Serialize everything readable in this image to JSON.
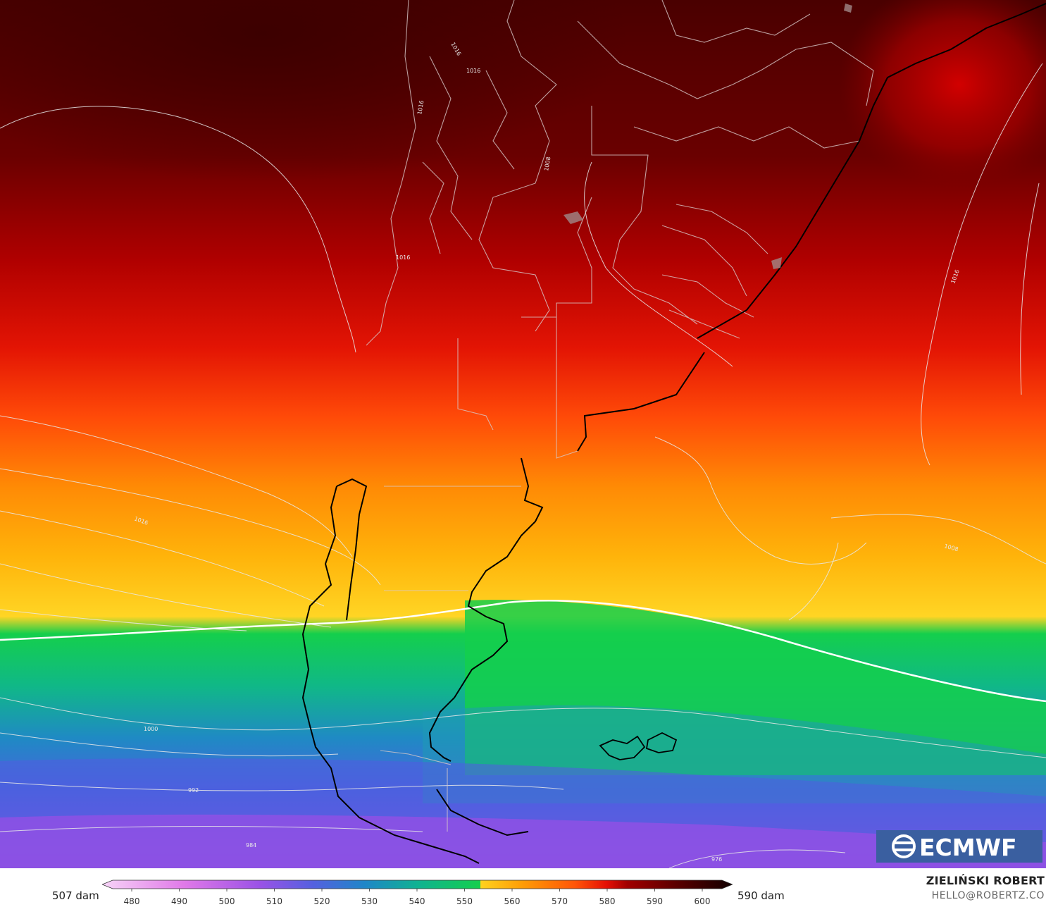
{
  "map": {
    "field": "500 hPa geopotential height (dam) with mean sea level pressure isobars",
    "region": "southern South America",
    "contour_labels": {
      "l1016_a": "1016",
      "l1016_b": "1016",
      "l1016_c": "1016",
      "l1016_d": "1016",
      "l1016_e": "1016",
      "l1016_f": "1016",
      "l1008_a": "1008",
      "l1008_b": "1008",
      "l1000": "1000",
      "l992": "992",
      "l984": "984",
      "l976": "976"
    },
    "logo": {
      "text": "ECMWF",
      "background": "#3a5fa0"
    }
  },
  "legend": {
    "min_label": "507 dam",
    "max_label": "590 dam",
    "ticks": [
      "480",
      "490",
      "500",
      "510",
      "520",
      "530",
      "540",
      "550",
      "560",
      "570",
      "580",
      "590",
      "600"
    ],
    "colors": {
      "480": "#f7d4f7",
      "495": "#e079e8",
      "510": "#9a52e6",
      "520": "#5560e0",
      "530": "#1f86c8",
      "540": "#10b292",
      "550": "#14cf4c",
      "552": "#ffd21f",
      "560": "#ff9d05",
      "570": "#ff5508",
      "575": "#e51005",
      "580": "#a10000",
      "590": "#560000",
      "600": "#120000"
    },
    "freezing_contour_value": "552"
  },
  "credits": {
    "author": "ZIELIŃSKI ROBERT",
    "email": "HELLO@ROBERTZ.CO"
  }
}
